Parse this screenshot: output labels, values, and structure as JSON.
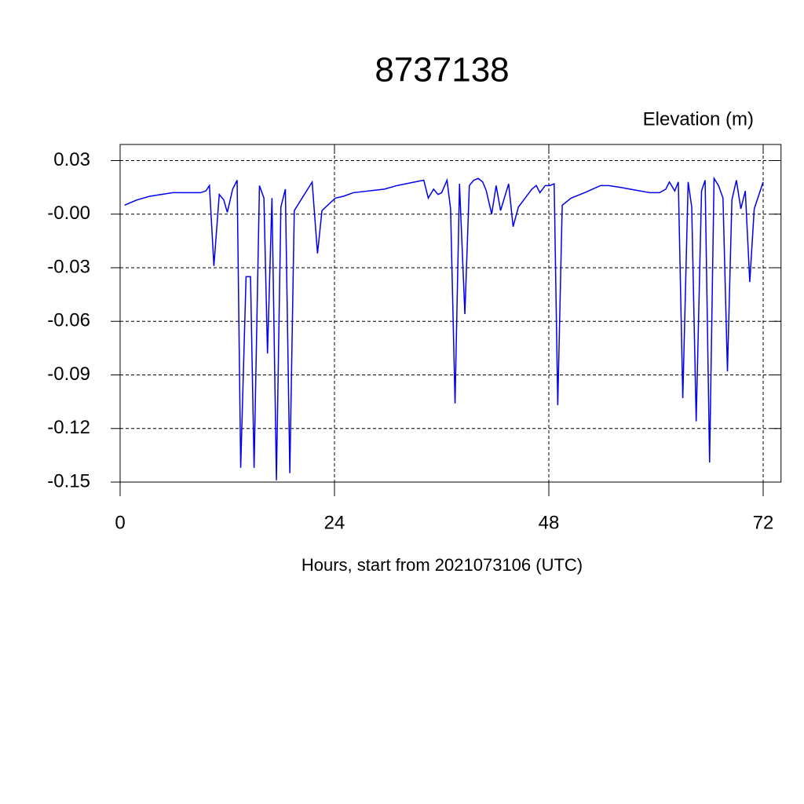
{
  "chart_data": {
    "type": "line",
    "title": "8737138",
    "subtitle": "Elevation (m)",
    "x_label": "Hours, start from 2021073106 (UTC)",
    "xlim": [
      0,
      74
    ],
    "xticks": [
      0,
      24,
      48,
      72
    ],
    "ylim": [
      -0.15,
      0.039
    ],
    "yticks": [
      0.03,
      {
        "value": 0,
        "label": "-0.00"
      },
      -0.03,
      -0.06,
      -0.09,
      -0.12,
      -0.15
    ],
    "grid": true,
    "series": [
      {
        "color": "#0000ee",
        "x": [
          0.5,
          1.9,
          3.3,
          5.9,
          9.0,
          9.6,
          10.0,
          10.5,
          11.1,
          11.6,
          12.0,
          12.6,
          13.1,
          13.5,
          14.1,
          14.6,
          15.0,
          15.6,
          16.1,
          16.5,
          17.0,
          17.5,
          18.0,
          18.5,
          19.0,
          19.5,
          21.0,
          21.5,
          22.1,
          22.6,
          24.1,
          25.0,
          26.1,
          29.6,
          31.0,
          33.0,
          34.0,
          34.5,
          35.1,
          35.6,
          36.0,
          36.6,
          37.0,
          37.5,
          38.0,
          38.6,
          39.1,
          39.6,
          40.1,
          40.6,
          41.0,
          41.6,
          42.1,
          42.6,
          43.5,
          44.0,
          44.6,
          45.5,
          46.1,
          46.6,
          47.0,
          47.6,
          48.1,
          48.6,
          49.0,
          49.5,
          50.5,
          52.0,
          53.8,
          54.7,
          56.0,
          58.2,
          59.3,
          60.4,
          61.1,
          61.5,
          62.1,
          62.5,
          63.0,
          63.6,
          64.0,
          64.5,
          65.1,
          65.5,
          66.0,
          66.5,
          67.0,
          67.5,
          68.0,
          68.5,
          69.0,
          69.5,
          70.0,
          70.5,
          71.0,
          72.0
        ],
        "values": [
          0.005,
          0.008,
          0.01,
          0.012,
          0.012,
          0.013,
          0.016,
          -0.029,
          0.011,
          0.008,
          0.001,
          0.014,
          0.019,
          -0.142,
          -0.035,
          -0.035,
          -0.142,
          0.016,
          0.009,
          -0.078,
          0.009,
          -0.149,
          0.004,
          0.014,
          -0.145,
          0.002,
          0.014,
          0.018,
          -0.022,
          0.002,
          0.009,
          0.01,
          0.012,
          0.014,
          0.016,
          0.018,
          0.019,
          0.009,
          0.014,
          0.011,
          0.012,
          0.019,
          0.003,
          -0.106,
          0.017,
          -0.056,
          0.016,
          0.019,
          0.02,
          0.018,
          0.013,
          0.0,
          0.016,
          0.002,
          0.017,
          -0.007,
          0.004,
          0.01,
          0.014,
          0.016,
          0.012,
          0.016,
          0.016,
          0.017,
          -0.107,
          0.005,
          0.009,
          0.012,
          0.016,
          0.016,
          0.015,
          0.013,
          0.012,
          0.012,
          0.014,
          0.018,
          0.013,
          0.018,
          -0.103,
          0.018,
          0.004,
          -0.116,
          0.013,
          0.019,
          -0.139,
          0.02,
          0.016,
          0.009,
          -0.088,
          0.008,
          0.019,
          0.003,
          0.013,
          -0.038,
          0.003,
          0.018
        ]
      }
    ]
  }
}
